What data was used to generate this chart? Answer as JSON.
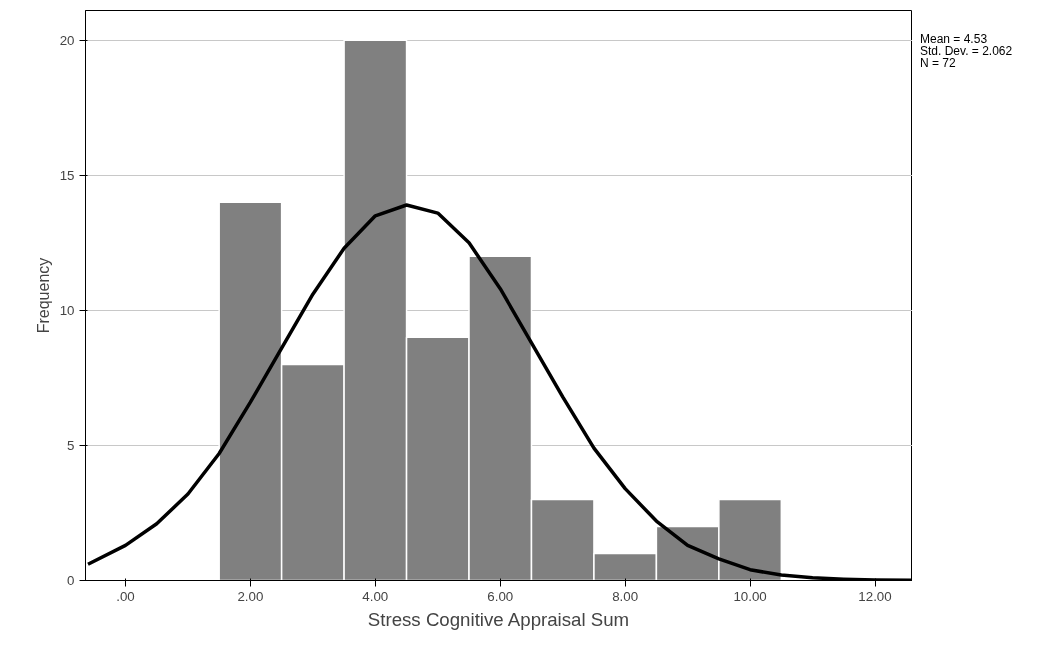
{
  "chart_data": {
    "type": "histogram",
    "xlabel": "Stress Cognitive Appraisal Sum",
    "ylabel": "Frequency",
    "bins": [
      1.5,
      2.5,
      3.5,
      4.5,
      5.5,
      6.5,
      7.5,
      8.5,
      9.5,
      10.5
    ],
    "values": [
      14,
      8,
      20,
      9,
      12,
      3,
      1,
      2,
      3
    ],
    "color": "#808080",
    "series": [
      {
        "type": "line",
        "color": "#000000",
        "x": [
          -0.6,
          0,
          0.5,
          1,
          1.5,
          2,
          2.5,
          3,
          3.5,
          4,
          4.5,
          5,
          5.5,
          6,
          6.5,
          7,
          7.5,
          8,
          8.5,
          9,
          9.5,
          10,
          10.5,
          11,
          11.5,
          12,
          12.6
        ],
        "values": [
          0.6,
          1.3,
          2.1,
          3.2,
          4.7,
          6.6,
          8.6,
          10.6,
          12.3,
          13.5,
          13.9,
          13.6,
          12.5,
          10.8,
          8.8,
          6.8,
          4.9,
          3.4,
          2.2,
          1.3,
          0.8,
          0.4,
          0.2,
          0.1,
          0.05,
          0.02,
          0.01
        ]
      }
    ],
    "xlim": [
      -0.64,
      12.6
    ],
    "ylim": [
      0,
      21.1
    ],
    "xticks": [
      {
        "value": 0,
        "label": ".00"
      },
      {
        "value": 2,
        "label": "2.00"
      },
      {
        "value": 4,
        "label": "4.00"
      },
      {
        "value": 6,
        "label": "6.00"
      },
      {
        "value": 8,
        "label": "8.00"
      },
      {
        "value": 10,
        "label": "10.00"
      },
      {
        "value": 12,
        "label": "12.00"
      }
    ],
    "yticks": [
      0,
      5,
      10,
      15,
      20
    ],
    "grid": "y",
    "annotations": [
      "Mean = 4.53",
      "Std. Dev. = 2.062",
      "N = 72"
    ]
  }
}
